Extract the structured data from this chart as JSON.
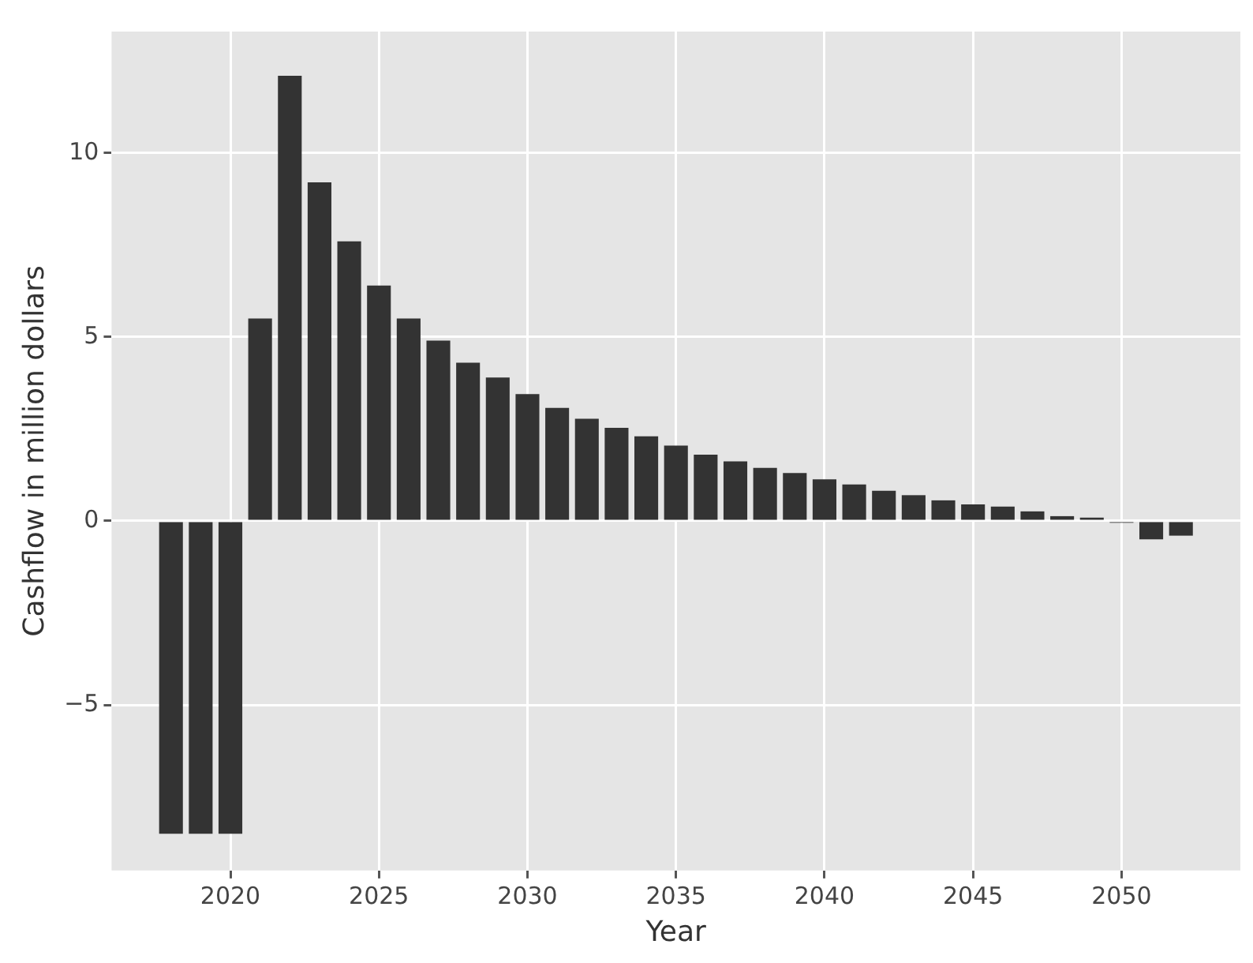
{
  "chart_data": {
    "type": "bar",
    "xlabel": "Year",
    "ylabel": "Cashflow in million dollars",
    "x": [
      2018,
      2019,
      2020,
      2021,
      2022,
      2023,
      2024,
      2025,
      2026,
      2027,
      2028,
      2029,
      2030,
      2031,
      2032,
      2033,
      2034,
      2035,
      2036,
      2037,
      2038,
      2039,
      2040,
      2041,
      2042,
      2043,
      2044,
      2045,
      2046,
      2047,
      2048,
      2049,
      2050,
      2051,
      2052
    ],
    "values": [
      -8.5,
      -8.5,
      -8.5,
      5.5,
      12.1,
      9.2,
      7.6,
      6.4,
      5.5,
      4.9,
      4.3,
      3.9,
      3.45,
      3.07,
      2.78,
      2.53,
      2.3,
      2.05,
      1.8,
      1.62,
      1.44,
      1.3,
      1.13,
      0.99,
      0.82,
      0.7,
      0.56,
      0.45,
      0.39,
      0.26,
      0.13,
      0.09,
      -0.05,
      -0.5,
      -0.4
    ],
    "color": "#333333",
    "xlim": [
      2016,
      2054
    ],
    "xticks": [
      2020,
      2025,
      2030,
      2035,
      2040,
      2045,
      2050
    ],
    "ylim": [
      -9.5,
      13.3
    ],
    "yticks": [
      -5,
      0,
      5,
      10
    ],
    "grid": true
  }
}
